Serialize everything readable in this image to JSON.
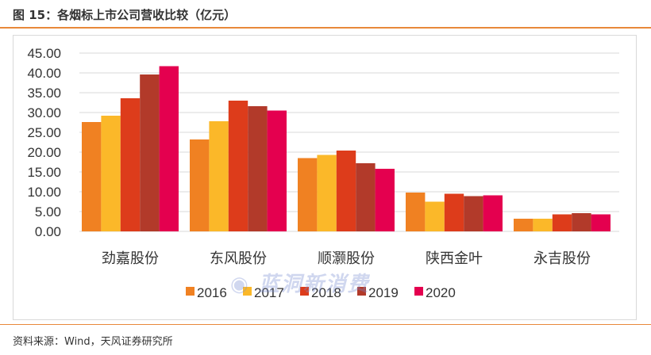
{
  "title": "图 15：各烟标上市公司营收比较（亿元）",
  "source": "资料来源：Wind，天风证券研究所",
  "watermark": "蓝洞新消费",
  "chart_data": {
    "type": "bar",
    "title": "",
    "xlabel": "",
    "ylabel": "",
    "ylim": [
      0,
      45
    ],
    "yticks": [
      "0.00",
      "5.00",
      "10.00",
      "15.00",
      "20.00",
      "25.00",
      "30.00",
      "35.00",
      "40.00",
      "45.00"
    ],
    "grid": true,
    "legend": "bottom",
    "categories": [
      "劲嘉股份",
      "东风股份",
      "顺灏股份",
      "陕西金叶",
      "永吉股份"
    ],
    "series": [
      {
        "name": "2016",
        "color": "#f08122",
        "values": [
          27.6,
          23.2,
          18.5,
          9.8,
          3.2
        ]
      },
      {
        "name": "2017",
        "color": "#fbb829",
        "values": [
          29.2,
          27.8,
          19.3,
          7.5,
          3.2
        ]
      },
      {
        "name": "2018",
        "color": "#dd3c1b",
        "values": [
          33.6,
          33.0,
          20.4,
          9.5,
          4.3
        ]
      },
      {
        "name": "2019",
        "color": "#b23a2a",
        "values": [
          39.6,
          31.6,
          17.2,
          8.9,
          4.6
        ]
      },
      {
        "name": "2020",
        "color": "#e4004f",
        "values": [
          41.7,
          30.5,
          15.8,
          9.1,
          4.3
        ]
      }
    ]
  }
}
